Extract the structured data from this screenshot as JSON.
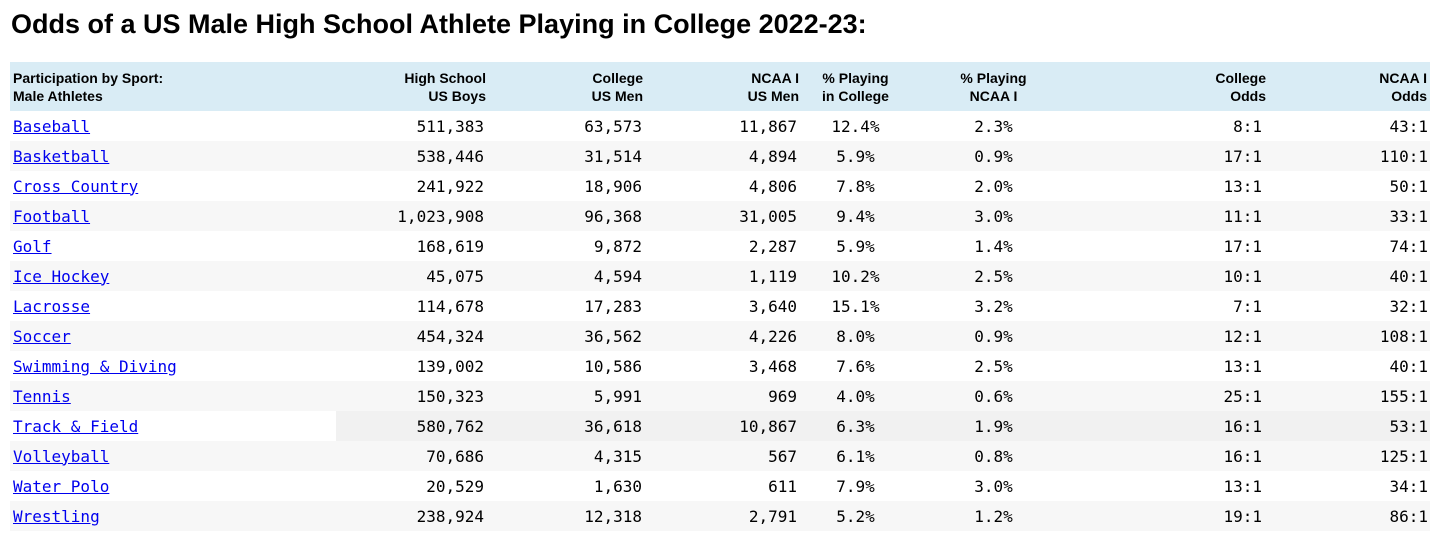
{
  "title": "Odds of a US Male High School Athlete Playing in College 2022-23:",
  "columns": [
    [
      "Participation by Sport:",
      "Male Athletes"
    ],
    [
      "High School",
      "US Boys"
    ],
    [
      "College",
      "US Men"
    ],
    [
      "NCAA I",
      "US Men"
    ],
    [
      "% Playing",
      "in College"
    ],
    [
      "% Playing",
      "NCAA I"
    ],
    [
      "College",
      "Odds"
    ],
    [
      "NCAA I",
      "Odds"
    ]
  ],
  "rows": [
    [
      "Baseball",
      "511,383",
      "63,573",
      "11,867",
      "12.4%",
      "2.3%",
      "8:1",
      "43:1"
    ],
    [
      "Basketball",
      "538,446",
      "31,514",
      "4,894",
      "5.9%",
      "0.9%",
      "17:1",
      "110:1"
    ],
    [
      "Cross Country",
      "241,922",
      "18,906",
      "4,806",
      "7.8%",
      "2.0%",
      "13:1",
      "50:1"
    ],
    [
      "Football",
      "1,023,908",
      "96,368",
      "31,005",
      "9.4%",
      "3.0%",
      "11:1",
      "33:1"
    ],
    [
      "Golf",
      "168,619",
      "9,872",
      "2,287",
      "5.9%",
      "1.4%",
      "17:1",
      "74:1"
    ],
    [
      "Ice Hockey",
      "45,075",
      "4,594",
      "1,119",
      "10.2%",
      "2.5%",
      "10:1",
      "40:1"
    ],
    [
      "Lacrosse",
      "114,678",
      "17,283",
      "3,640",
      "15.1%",
      "3.2%",
      "7:1",
      "32:1"
    ],
    [
      "Soccer",
      "454,324",
      "36,562",
      "4,226",
      "8.0%",
      "0.9%",
      "12:1",
      "108:1"
    ],
    [
      "Swimming & Diving",
      "139,002",
      "10,586",
      "3,468",
      "7.6%",
      "2.5%",
      "13:1",
      "40:1"
    ],
    [
      "Tennis",
      "150,323",
      "5,991",
      "969",
      "4.0%",
      "0.6%",
      "25:1",
      "155:1"
    ],
    [
      "Track & Field ",
      "580,762",
      "36,618",
      "10,867",
      "6.3%",
      "1.9%",
      "16:1",
      "53:1"
    ],
    [
      "Volleyball",
      "70,686",
      "4,315",
      "567",
      "6.1%",
      "0.8%",
      "16:1",
      "125:1"
    ],
    [
      "Water Polo",
      "20,529",
      "1,630",
      "611",
      "7.9%",
      "3.0%",
      "13:1",
      "34:1"
    ],
    [
      "Wrestling",
      "238,924",
      "12,318",
      "2,791",
      "5.2%",
      "1.2%",
      "19:1",
      "86:1"
    ]
  ]
}
